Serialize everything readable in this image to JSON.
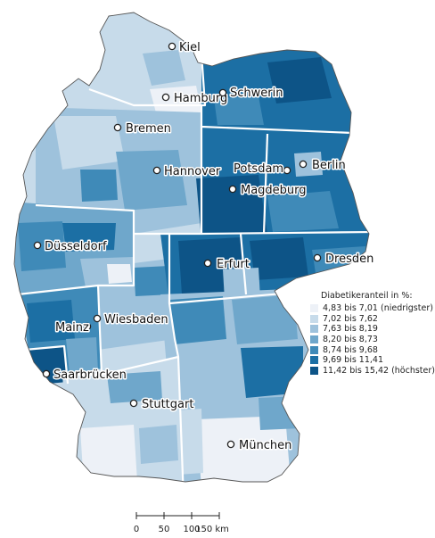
{
  "map": {
    "legend": {
      "title": "Diabetikeranteil in %:",
      "classes": [
        {
          "label": "4,83 bis  7,01 (niedrigster)",
          "color": "#edf1f7"
        },
        {
          "label": "7,02 bis  7,62",
          "color": "#c7dbea"
        },
        {
          "label": "7,63 bis  8,19",
          "color": "#9ec2dc"
        },
        {
          "label": "8,20 bis  8,73",
          "color": "#6fa7cb"
        },
        {
          "label": "8,74 bis  9,68",
          "color": "#3f8ab8"
        },
        {
          "label": "9,69 bis 11,41",
          "color": "#1c6fa4"
        },
        {
          "label": "11,42 bis 15,42 (höchster)",
          "color": "#0d5487"
        }
      ]
    },
    "cities": [
      {
        "name": "Kiel"
      },
      {
        "name": "Hamburg"
      },
      {
        "name": "Schwerin"
      },
      {
        "name": "Bremen"
      },
      {
        "name": "Berlin"
      },
      {
        "name": "Potsdam"
      },
      {
        "name": "Hannover"
      },
      {
        "name": "Magdeburg"
      },
      {
        "name": "Düsseldorf"
      },
      {
        "name": "Erfurt"
      },
      {
        "name": "Dresden"
      },
      {
        "name": "Mainz"
      },
      {
        "name": "Wiesbaden"
      },
      {
        "name": "Saarbrücken"
      },
      {
        "name": "Stuttgart"
      },
      {
        "name": "München"
      }
    ],
    "scalebar": {
      "ticks": [
        "0",
        "50",
        "100",
        "150 km"
      ]
    }
  }
}
